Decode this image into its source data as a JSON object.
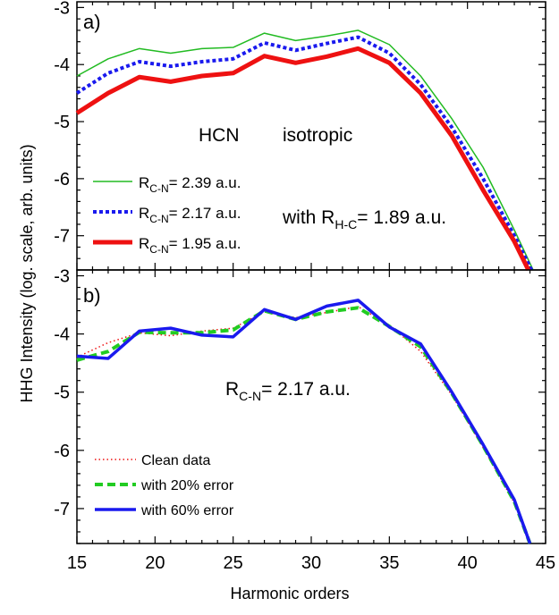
{
  "figure": {
    "ylabel": "HHG Intensity (log. scale, arb. units)",
    "xlabel": "Harmonic orders"
  },
  "chart_data": [
    {
      "type": "line",
      "panel_label": "a)",
      "xlim": [
        15,
        45
      ],
      "ylim": [
        -7.6,
        -2.9
      ],
      "x_ticks": [
        15,
        20,
        25,
        30,
        35,
        40,
        45
      ],
      "x_tick_labels": [
        "15",
        "20",
        "25",
        "30",
        "35",
        "40",
        "45"
      ],
      "y_ticks": [
        -3,
        -4,
        -5,
        -6,
        -7
      ],
      "y_tick_labels": [
        "-3",
        "-4",
        "-5",
        "-6",
        "-7"
      ],
      "annotations": {
        "molecule": "HCN",
        "orientation": "isotropic",
        "rhc_prefix": "with R",
        "rhc_sub": "H-C",
        "rhc_value": "= 1.89 a.u."
      },
      "series": [
        {
          "name": "R_C-N = 2.39 a.u.",
          "legend_main": "R",
          "legend_sub": "C-N",
          "legend_value": "= 2.39 a.u.",
          "color": "#22bb22",
          "style": "solid",
          "width": 1.5,
          "x": [
            15,
            17,
            19,
            21,
            23,
            25,
            27,
            29,
            31,
            33,
            35,
            37,
            39,
            41,
            43,
            44.2
          ],
          "y": [
            -4.2,
            -3.9,
            -3.72,
            -3.8,
            -3.72,
            -3.7,
            -3.45,
            -3.58,
            -3.5,
            -3.4,
            -3.65,
            -4.2,
            -4.95,
            -5.8,
            -6.9,
            -7.6
          ]
        },
        {
          "name": "R_C-N = 2.17 a.u.",
          "legend_main": "R",
          "legend_sub": "C-N",
          "legend_value": "= 2.17 a.u.",
          "color": "#1a1aee",
          "style": "dotted",
          "width": 4,
          "x": [
            15,
            17,
            19,
            21,
            23,
            25,
            27,
            29,
            31,
            33,
            35,
            37,
            39,
            41,
            43,
            44.1
          ],
          "y": [
            -4.5,
            -4.15,
            -3.95,
            -4.03,
            -3.95,
            -3.9,
            -3.62,
            -3.75,
            -3.63,
            -3.52,
            -3.8,
            -4.35,
            -5.1,
            -6.0,
            -7.0,
            -7.6
          ]
        },
        {
          "name": "R_C-N = 1.95 a.u.",
          "legend_main": "R",
          "legend_sub": "C-N",
          "legend_value": "= 1.95 a.u.",
          "color": "#ee1111",
          "style": "solid",
          "width": 5,
          "x": [
            15,
            17,
            19,
            21,
            23,
            25,
            27,
            29,
            31,
            33,
            35,
            37,
            39,
            41,
            43,
            43.9
          ],
          "y": [
            -4.85,
            -4.5,
            -4.22,
            -4.3,
            -4.2,
            -4.15,
            -3.85,
            -3.97,
            -3.86,
            -3.72,
            -3.97,
            -4.5,
            -5.25,
            -6.2,
            -7.1,
            -7.6
          ]
        }
      ]
    },
    {
      "type": "line",
      "panel_label": "b)",
      "xlim": [
        15,
        45
      ],
      "ylim": [
        -7.6,
        -2.9
      ],
      "x_ticks": [
        15,
        20,
        25,
        30,
        35,
        40,
        45
      ],
      "x_tick_labels": [
        "15",
        "20",
        "25",
        "30",
        "35",
        "40",
        "45"
      ],
      "y_ticks": [
        -3,
        -4,
        -5,
        -6,
        -7
      ],
      "y_tick_labels": [
        "-3",
        "-4",
        "-5",
        "-6",
        "-7"
      ],
      "annotations": {
        "rcn_prefix": "R",
        "rcn_sub": "C-N",
        "rcn_value": "= 2.17 a.u."
      },
      "series": [
        {
          "name": "Clean data",
          "color": "#ee1111",
          "style": "fine-dotted",
          "width": 1.5,
          "x": [
            15,
            17,
            19,
            21,
            23,
            25,
            27,
            29,
            31,
            33,
            35,
            37,
            39,
            41,
            43,
            44
          ],
          "y": [
            -4.4,
            -4.15,
            -3.98,
            -4.03,
            -3.95,
            -3.9,
            -3.62,
            -3.72,
            -3.63,
            -3.53,
            -3.85,
            -4.3,
            -5.05,
            -5.95,
            -6.9,
            -7.6
          ]
        },
        {
          "name": "with 20% error",
          "color": "#22cc22",
          "style": "dashed",
          "width": 4,
          "x": [
            15,
            17,
            19,
            21,
            23,
            25,
            27,
            29,
            31,
            33,
            35,
            37,
            39,
            41,
            43,
            44
          ],
          "y": [
            -4.45,
            -4.3,
            -3.97,
            -3.98,
            -3.98,
            -3.93,
            -3.6,
            -3.75,
            -3.62,
            -3.55,
            -3.87,
            -4.22,
            -5.02,
            -5.92,
            -6.88,
            -7.6
          ]
        },
        {
          "name": "with 60% error",
          "color": "#1a1aee",
          "style": "solid",
          "width": 3.5,
          "x": [
            15,
            17,
            19,
            21,
            23,
            25,
            27,
            29,
            31,
            33,
            35,
            37,
            39,
            41,
            43,
            44
          ],
          "y": [
            -4.38,
            -4.42,
            -3.95,
            -3.9,
            -4.02,
            -4.05,
            -3.58,
            -3.75,
            -3.52,
            -3.42,
            -3.88,
            -4.17,
            -5.0,
            -5.9,
            -6.85,
            -7.6
          ]
        }
      ]
    }
  ]
}
